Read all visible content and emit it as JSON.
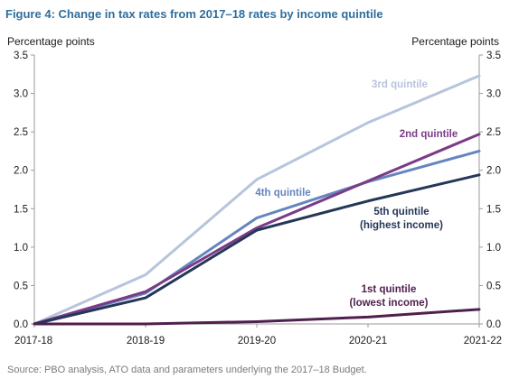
{
  "figure": {
    "title": "Figure 4: Change in tax rates from 2017–18 rates by income quintile",
    "source": "Source: PBO analysis, ATO data and parameters underlying the 2017–18 Budget."
  },
  "chart_data": {
    "type": "line",
    "ylabel_left": "Percentage points",
    "ylabel_right": "Percentage points",
    "categories": [
      "2017-18",
      "2018-19",
      "2019-20",
      "2020-21",
      "2021-22"
    ],
    "ylim": [
      0,
      3.5
    ],
    "yticks": [
      "0.0",
      "0.5",
      "1.0",
      "1.5",
      "2.0",
      "2.5",
      "3.0",
      "3.5"
    ],
    "grid": false,
    "series": [
      {
        "key": "q3",
        "label_lines": [
          "3rd quintile"
        ],
        "color": "#b7c4dc",
        "values": [
          0.0,
          0.64,
          1.88,
          2.62,
          3.23
        ]
      },
      {
        "key": "q4",
        "label_lines": [
          "4th quintile"
        ],
        "color": "#6585bf",
        "values": [
          0.0,
          0.4,
          1.38,
          1.85,
          2.25
        ]
      },
      {
        "key": "q2",
        "label_lines": [
          "2nd quintile"
        ],
        "color": "#7a3b87",
        "values": [
          0.0,
          0.42,
          1.25,
          1.86,
          2.47
        ]
      },
      {
        "key": "q5",
        "label_lines": [
          "5th quintile",
          "(highest income)"
        ],
        "color": "#253757",
        "values": [
          0.0,
          0.34,
          1.22,
          1.6,
          1.94
        ]
      },
      {
        "key": "q1",
        "label_lines": [
          "1st quintile",
          "(lowest income)"
        ],
        "color": "#4f1f4d",
        "values": [
          0.0,
          0.0,
          0.03,
          0.09,
          0.19
        ]
      }
    ]
  }
}
